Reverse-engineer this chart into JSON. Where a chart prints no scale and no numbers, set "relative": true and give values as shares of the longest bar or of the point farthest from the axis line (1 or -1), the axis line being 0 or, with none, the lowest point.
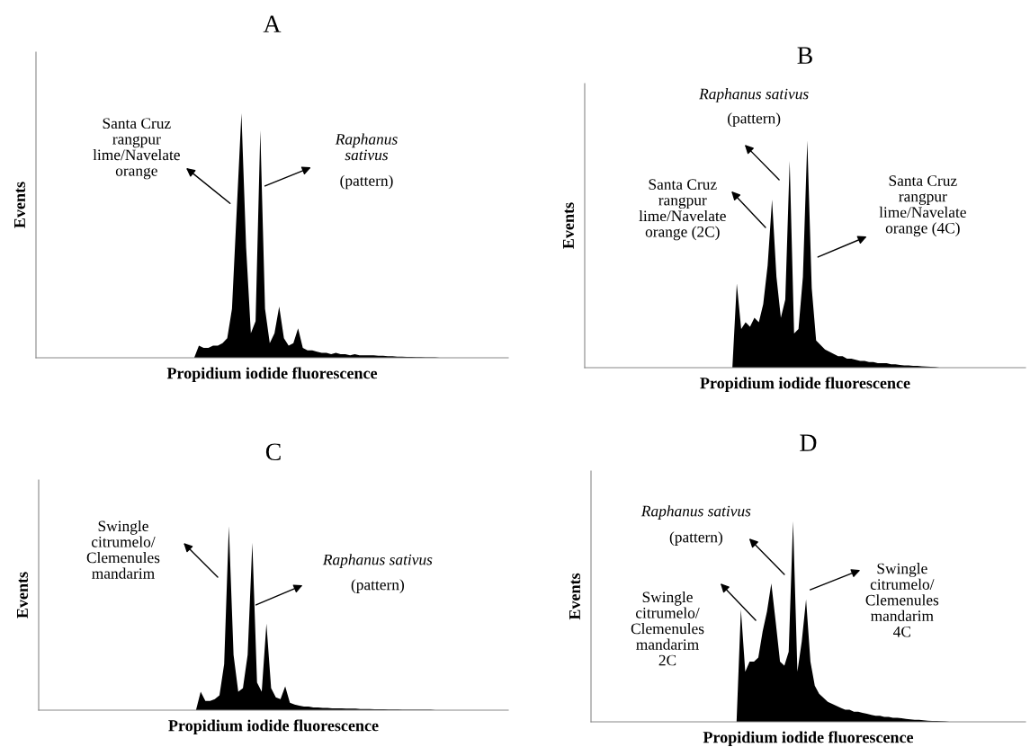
{
  "chart_data": [
    {
      "type": "area",
      "title": "A",
      "xlabel": "Propidium iodide fluorescence",
      "ylabel": "Events",
      "relative": true,
      "categories": [
        null,
        null,
        null,
        null,
        null,
        null,
        null,
        null,
        null,
        null,
        null,
        null,
        null,
        null,
        null,
        null,
        null,
        null,
        null,
        null,
        null,
        null,
        null,
        null,
        null,
        null,
        null,
        null,
        null,
        null,
        null,
        null,
        null,
        null,
        null,
        null,
        null,
        null,
        null,
        null,
        null,
        null,
        null,
        null,
        null,
        null,
        null,
        null,
        null,
        null,
        null,
        null,
        null,
        null,
        null,
        null,
        null,
        null,
        null,
        null,
        null,
        null,
        null,
        null,
        null,
        null,
        null,
        null,
        null,
        null,
        null,
        null,
        null,
        null,
        null,
        null,
        null,
        null,
        null,
        null,
        null,
        null,
        null,
        null,
        null,
        null,
        null,
        null,
        null,
        null,
        null,
        null,
        null,
        null,
        null,
        null,
        null,
        null,
        null,
        null
      ],
      "series": [
        {
          "color": "#000000",
          "values": [
            0,
            0,
            0,
            0,
            0,
            0,
            0,
            0,
            0,
            0,
            0,
            0,
            0,
            0,
            0,
            0,
            0,
            0,
            0,
            0,
            0,
            0,
            0,
            0,
            0,
            0,
            0,
            0,
            0,
            0,
            0,
            0,
            0,
            0,
            0.05,
            0.04,
            0.04,
            0.05,
            0.05,
            0.06,
            0.08,
            0.2,
            0.6,
            1.0,
            0.45,
            0.1,
            0.15,
            0.93,
            0.2,
            0.06,
            0.1,
            0.21,
            0.08,
            0.05,
            0.06,
            0.12,
            0.04,
            0.03,
            0.03,
            0.025,
            0.02,
            0.02,
            0.015,
            0.02,
            0.015,
            0.015,
            0.01,
            0.015,
            0.01,
            0.01,
            0.01,
            0.01,
            0.008,
            0.008,
            0.006,
            0.006,
            0.005,
            0.005,
            0.004,
            0.004,
            0.003,
            0.003,
            0.002,
            0.002,
            0.002,
            0,
            0,
            0,
            0,
            0,
            0,
            0,
            0,
            0,
            0,
            0,
            0,
            0,
            0,
            0
          ]
        }
      ],
      "annotations": [
        "Santa Cruz\nrangpur\nlime/Navelate\norange",
        "Raphanus\nsativus",
        "(pattern)"
      ]
    },
    {
      "type": "area",
      "title": "B",
      "xlabel": "Propidium iodide fluorescence",
      "ylabel": "Events",
      "relative": true,
      "categories": [
        null,
        null,
        null,
        null,
        null,
        null,
        null,
        null,
        null,
        null,
        null,
        null,
        null,
        null,
        null,
        null,
        null,
        null,
        null,
        null,
        null,
        null,
        null,
        null,
        null,
        null,
        null,
        null,
        null,
        null,
        null,
        null,
        null,
        null,
        null,
        null,
        null,
        null,
        null,
        null,
        null,
        null,
        null,
        null,
        null,
        null,
        null,
        null,
        null,
        null,
        null,
        null,
        null,
        null,
        null,
        null,
        null,
        null,
        null,
        null,
        null,
        null,
        null,
        null,
        null,
        null,
        null,
        null,
        null,
        null,
        null,
        null,
        null,
        null,
        null,
        null,
        null,
        null,
        null,
        null,
        null,
        null,
        null,
        null,
        null,
        null,
        null,
        null,
        null,
        null,
        null,
        null,
        null,
        null,
        null,
        null,
        null,
        null,
        null,
        null
      ],
      "series": [
        {
          "color": "#000000",
          "values": [
            0,
            0,
            0,
            0,
            0,
            0,
            0,
            0,
            0,
            0,
            0,
            0,
            0,
            0,
            0,
            0,
            0,
            0,
            0,
            0,
            0,
            0,
            0,
            0,
            0,
            0,
            0,
            0,
            0,
            0,
            0,
            0,
            0,
            0,
            0.37,
            0.17,
            0.2,
            0.18,
            0.22,
            0.2,
            0.28,
            0.45,
            0.74,
            0.4,
            0.22,
            0.3,
            0.91,
            0.15,
            0.17,
            0.4,
            1.0,
            0.35,
            0.12,
            0.1,
            0.08,
            0.07,
            0.06,
            0.05,
            0.05,
            0.04,
            0.04,
            0.035,
            0.03,
            0.03,
            0.025,
            0.025,
            0.02,
            0.02,
            0.02,
            0.015,
            0.015,
            0.012,
            0.01,
            0.01,
            0.008,
            0.008,
            0.006,
            0.005,
            0.004,
            0.003,
            0,
            0,
            0,
            0,
            0,
            0,
            0,
            0,
            0,
            0,
            0,
            0,
            0,
            0,
            0,
            0,
            0,
            0,
            0,
            0
          ]
        }
      ],
      "annotations": [
        "Raphanus sativus",
        "(pattern)",
        "Santa Cruz\nrangpur\nlime/Navelate\norange (2C)",
        "Santa Cruz\nrangpur\nlime/Navelate\norange (4C)"
      ]
    },
    {
      "type": "area",
      "title": "C",
      "xlabel": "Propidium iodide fluorescence",
      "ylabel": "Events",
      "relative": true,
      "categories": [
        null,
        null,
        null,
        null,
        null,
        null,
        null,
        null,
        null,
        null,
        null,
        null,
        null,
        null,
        null,
        null,
        null,
        null,
        null,
        null,
        null,
        null,
        null,
        null,
        null,
        null,
        null,
        null,
        null,
        null,
        null,
        null,
        null,
        null,
        null,
        null,
        null,
        null,
        null,
        null,
        null,
        null,
        null,
        null,
        null,
        null,
        null,
        null,
        null,
        null,
        null,
        null,
        null,
        null,
        null,
        null,
        null,
        null,
        null,
        null,
        null,
        null,
        null,
        null,
        null,
        null,
        null,
        null,
        null,
        null,
        null,
        null,
        null,
        null,
        null,
        null,
        null,
        null,
        null,
        null,
        null,
        null,
        null,
        null,
        null,
        null,
        null,
        null,
        null,
        null,
        null,
        null,
        null,
        null,
        null,
        null,
        null,
        null,
        null,
        null
      ],
      "series": [
        {
          "color": "#000000",
          "values": [
            0,
            0,
            0,
            0,
            0,
            0,
            0,
            0,
            0,
            0,
            0,
            0,
            0,
            0,
            0,
            0,
            0,
            0,
            0,
            0,
            0,
            0,
            0,
            0,
            0,
            0,
            0,
            0,
            0,
            0,
            0,
            0,
            0,
            0,
            0.1,
            0.05,
            0.05,
            0.06,
            0.08,
            0.25,
            1.0,
            0.3,
            0.1,
            0.12,
            0.3,
            0.91,
            0.15,
            0.1,
            0.47,
            0.12,
            0.07,
            0.06,
            0.13,
            0.04,
            0.03,
            0.025,
            0.02,
            0.02,
            0.015,
            0.015,
            0.012,
            0.012,
            0.01,
            0.01,
            0.01,
            0.008,
            0.008,
            0.008,
            0.006,
            0.006,
            0.006,
            0.005,
            0.005,
            0.005,
            0.004,
            0.004,
            0.004,
            0.003,
            0.003,
            0.003,
            0.002,
            0.002,
            0.002,
            0.002,
            0,
            0,
            0,
            0,
            0,
            0,
            0,
            0,
            0,
            0,
            0,
            0,
            0,
            0,
            0,
            0
          ]
        }
      ],
      "annotations": [
        "Swingle\ncitrumelo/\nClemenules\nmandarim",
        "Raphanus sativus",
        "(pattern)"
      ]
    },
    {
      "type": "area",
      "title": "D",
      "xlabel": "Propidium iodide fluorescence",
      "ylabel": "Events",
      "relative": true,
      "categories": [
        null,
        null,
        null,
        null,
        null,
        null,
        null,
        null,
        null,
        null,
        null,
        null,
        null,
        null,
        null,
        null,
        null,
        null,
        null,
        null,
        null,
        null,
        null,
        null,
        null,
        null,
        null,
        null,
        null,
        null,
        null,
        null,
        null,
        null,
        null,
        null,
        null,
        null,
        null,
        null,
        null,
        null,
        null,
        null,
        null,
        null,
        null,
        null,
        null,
        null,
        null,
        null,
        null,
        null,
        null,
        null,
        null,
        null,
        null,
        null,
        null,
        null,
        null,
        null,
        null,
        null,
        null,
        null,
        null,
        null,
        null,
        null,
        null,
        null,
        null,
        null,
        null,
        null,
        null,
        null,
        null,
        null,
        null,
        null,
        null,
        null,
        null,
        null,
        null,
        null,
        null,
        null,
        null,
        null,
        null,
        null,
        null,
        null,
        null,
        null
      ],
      "series": [
        {
          "color": "#000000",
          "values": [
            0,
            0,
            0,
            0,
            0,
            0,
            0,
            0,
            0,
            0,
            0,
            0,
            0,
            0,
            0,
            0,
            0,
            0,
            0,
            0,
            0,
            0,
            0,
            0,
            0,
            0,
            0,
            0,
            0,
            0,
            0,
            0,
            0,
            0,
            0.56,
            0.25,
            0.3,
            0.3,
            0.32,
            0.45,
            0.55,
            0.69,
            0.5,
            0.3,
            0.28,
            0.35,
            1.0,
            0.25,
            0.4,
            0.61,
            0.3,
            0.18,
            0.14,
            0.12,
            0.1,
            0.09,
            0.08,
            0.07,
            0.06,
            0.06,
            0.05,
            0.05,
            0.045,
            0.04,
            0.035,
            0.03,
            0.03,
            0.025,
            0.025,
            0.02,
            0.02,
            0.018,
            0.015,
            0.012,
            0.01,
            0.01,
            0.008,
            0.006,
            0.005,
            0.004,
            0.003,
            0.002,
            0,
            0,
            0,
            0,
            0,
            0,
            0,
            0,
            0,
            0,
            0,
            0,
            0,
            0,
            0,
            0,
            0,
            0
          ]
        }
      ],
      "annotations": [
        "Raphanus sativus",
        "(pattern)",
        "Swingle\ncitrumelo/\nClemenules\nmandarim\n2C",
        "Swingle\ncitrumelo/\nClemenules\nmandarim\n4C"
      ]
    }
  ]
}
